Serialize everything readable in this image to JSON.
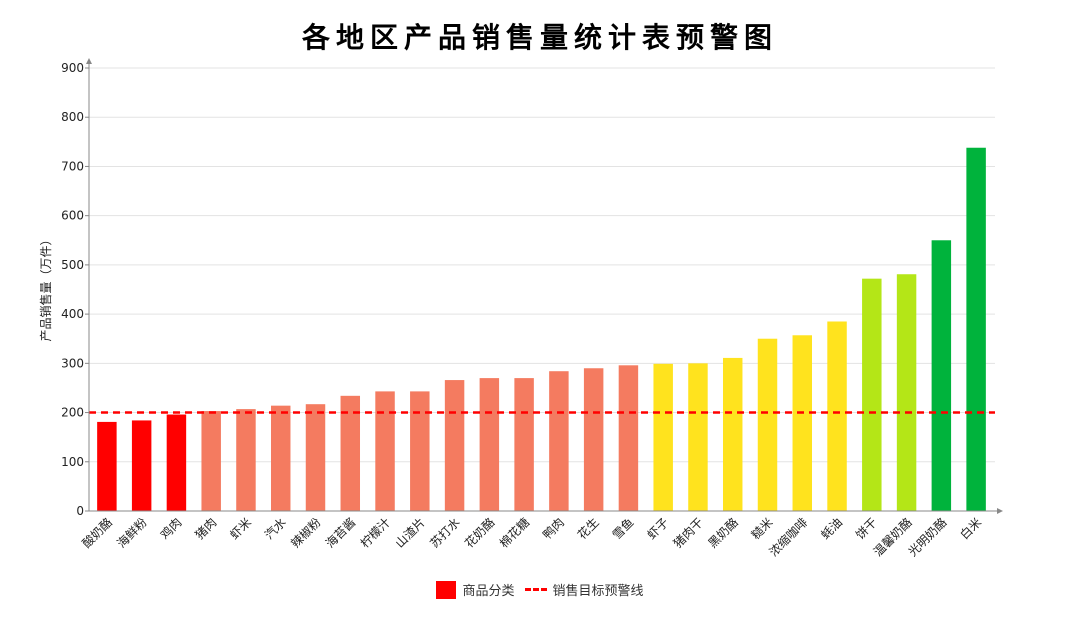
{
  "chart_data": {
    "type": "bar",
    "title": "各地区产品销售量统计表预警图",
    "ylabel": "产品销售量（万件）",
    "xlabel": "",
    "ylim": [
      0,
      900
    ],
    "yticks": [
      0,
      100,
      200,
      300,
      400,
      500,
      600,
      700,
      800,
      900
    ],
    "grid": true,
    "categories": [
      "酸奶酪",
      "海鲜粉",
      "鸡肉",
      "猪肉",
      "虾米",
      "汽水",
      "辣椒粉",
      "海苔酱",
      "柠檬汁",
      "山渣片",
      "苏打水",
      "花奶酪",
      "棉花糖",
      "鸭肉",
      "花生",
      "雪鱼",
      "虾子",
      "猪肉干",
      "黑奶酪",
      "糙米",
      "浓缩咖啡",
      "蚝油",
      "饼干",
      "温馨奶酪",
      "光明奶酪",
      "白米"
    ],
    "values": [
      181,
      184,
      196,
      203,
      207,
      214,
      217,
      234,
      243,
      243,
      266,
      270,
      270,
      284,
      290,
      296,
      299,
      300,
      311,
      350,
      357,
      385,
      472,
      481,
      550,
      738
    ],
    "colors": [
      "#ff0000",
      "#ff0000",
      "#ff0000",
      "#f47b60",
      "#f47b60",
      "#f47b60",
      "#f47b60",
      "#f47b60",
      "#f47b60",
      "#f47b60",
      "#f47b60",
      "#f47b60",
      "#f47b60",
      "#f47b60",
      "#f47b60",
      "#f47b60",
      "#ffe31e",
      "#ffe31e",
      "#ffe31e",
      "#ffe31e",
      "#ffe31e",
      "#ffe31e",
      "#b4e617",
      "#b4e617",
      "#00b33c",
      "#00b33c"
    ],
    "threshold": {
      "value": 200,
      "name": "销售目标预警线",
      "color": "#ff0000",
      "style": "dashed"
    },
    "legend": {
      "placement": "bottom-center",
      "items": [
        {
          "name": "商品分类",
          "kind": "bar",
          "color": "#ff0000"
        },
        {
          "name": "销售目标预警线",
          "kind": "dashed-line",
          "color": "#ff0000"
        }
      ]
    }
  }
}
